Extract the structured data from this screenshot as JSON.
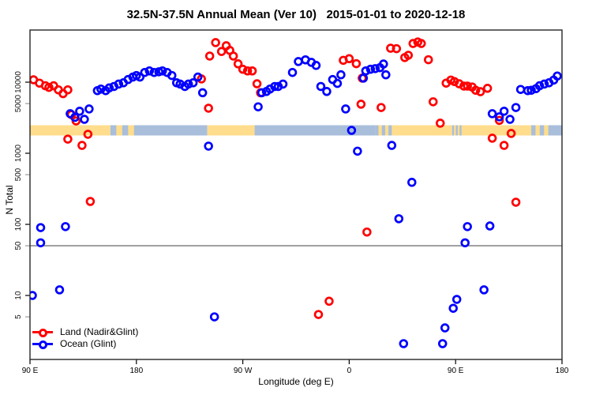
{
  "chart_data": {
    "type": "scatter",
    "title": "32.5N-37.5N Annual Mean (Ver 10)   2015-01-01 to 2020-12-18",
    "xlabel": "Longitude (deg E)",
    "ylabel": "N Total",
    "x_axis": {
      "start_label": "90 E",
      "span_deg": 450,
      "ticks": [
        {
          "deg": 0,
          "label": "90 E"
        },
        {
          "deg": 90,
          "label": "180"
        },
        {
          "deg": 180,
          "label": "90 W"
        },
        {
          "deg": 270,
          "label": "0"
        },
        {
          "deg": 360,
          "label": "90 E"
        },
        {
          "deg": 450,
          "label": "180"
        }
      ]
    },
    "y_axis": {
      "scale": "log",
      "range": [
        3,
        45000
      ],
      "ticks": [
        {
          "v": 5,
          "label": "5",
          "minor": true
        },
        {
          "v": 10,
          "label": "10",
          "minor": false
        },
        {
          "v": 50,
          "label": "50",
          "minor": true
        },
        {
          "v": 100,
          "label": "100",
          "minor": false
        },
        {
          "v": 500,
          "label": "500",
          "minor": true
        },
        {
          "v": 1000,
          "label": "1000",
          "minor": false
        },
        {
          "v": 5000,
          "label": "5000",
          "minor": true
        },
        {
          "v": 10000,
          "label": "10000",
          "minor": false
        }
      ]
    },
    "gridline_y_value": 50,
    "gridline_color": "#8a8a8a",
    "legend": [
      {
        "label": "Land (Nadir&Glint)",
        "color": "#FF0000"
      },
      {
        "label": "Ocean (Glint)",
        "color": "#0000FF"
      }
    ],
    "surface_strip": {
      "land_color": "#FFDD8C",
      "ocean_color": "#A8BEDB",
      "y_value": 2100,
      "thickness_px": 13,
      "segments": [
        {
          "d0": 0,
          "d1": 68,
          "type": "land"
        },
        {
          "d0": 68,
          "d1": 93,
          "type": "mix"
        },
        {
          "d0": 93,
          "d1": 150,
          "type": "ocean"
        },
        {
          "d0": 150,
          "d1": 190,
          "type": "land"
        },
        {
          "d0": 190,
          "d1": 292,
          "type": "ocean"
        },
        {
          "d0": 292,
          "d1": 306,
          "type": "mix"
        },
        {
          "d0": 306,
          "d1": 357,
          "type": "land"
        },
        {
          "d0": 357,
          "d1": 365,
          "type": "mix"
        },
        {
          "d0": 365,
          "d1": 424,
          "type": "land"
        },
        {
          "d0": 424,
          "d1": 442,
          "type": "mix"
        },
        {
          "d0": 442,
          "d1": 450,
          "type": "ocean"
        }
      ]
    },
    "series": [
      {
        "name": "Land (Nadir&Glint)",
        "color": "#FF0000",
        "points": [
          [
            3,
            10800
          ],
          [
            8,
            9700
          ],
          [
            13,
            8900
          ],
          [
            16,
            8450
          ],
          [
            20,
            8900
          ],
          [
            24,
            7800
          ],
          [
            28,
            6900
          ],
          [
            32,
            7800
          ],
          [
            35,
            3500
          ],
          [
            39,
            2850
          ],
          [
            32,
            1580
          ],
          [
            44,
            1290
          ],
          [
            49,
            1850
          ],
          [
            51,
            210
          ],
          [
            145,
            11100
          ],
          [
            152,
            23300
          ],
          [
            157,
            36000
          ],
          [
            162,
            27000
          ],
          [
            166,
            32500
          ],
          [
            169,
            28000
          ],
          [
            172,
            23300
          ],
          [
            176,
            18100
          ],
          [
            180,
            15200
          ],
          [
            184,
            14400
          ],
          [
            188,
            14400
          ],
          [
            192,
            9500
          ],
          [
            195,
            7100
          ],
          [
            151,
            4300
          ],
          [
            265,
            20300
          ],
          [
            270,
            21400
          ],
          [
            276,
            18200
          ],
          [
            281,
            11400
          ],
          [
            280,
            4900
          ],
          [
            297,
            4400
          ],
          [
            285,
            78
          ],
          [
            305,
            30000
          ],
          [
            310,
            29600
          ],
          [
            317,
            22200
          ],
          [
            320,
            23900
          ],
          [
            324,
            35000
          ],
          [
            328,
            36700
          ],
          [
            331,
            35000
          ],
          [
            337,
            20700
          ],
          [
            341,
            5300
          ],
          [
            347,
            2650
          ],
          [
            352,
            9700
          ],
          [
            356,
            10700
          ],
          [
            359,
            10200
          ],
          [
            363,
            9500
          ],
          [
            367,
            8800
          ],
          [
            370,
            8800
          ],
          [
            374,
            8550
          ],
          [
            377,
            7700
          ],
          [
            381,
            7350
          ],
          [
            387,
            8200
          ],
          [
            391,
            1630
          ],
          [
            397,
            2900
          ],
          [
            401,
            1290
          ],
          [
            407,
            1900
          ],
          [
            411,
            205
          ],
          [
            244,
            5.4
          ],
          [
            253,
            8.3
          ]
        ]
      },
      {
        "name": "Ocean (Glint)",
        "color": "#0000FF",
        "points": [
          [
            2,
            10
          ],
          [
            25,
            12
          ],
          [
            9,
            90
          ],
          [
            30,
            93
          ],
          [
            9,
            55
          ],
          [
            34,
            3600
          ],
          [
            38,
            3200
          ],
          [
            42,
            3900
          ],
          [
            46,
            3000
          ],
          [
            50,
            4200
          ],
          [
            57,
            7600
          ],
          [
            60,
            8000
          ],
          [
            64,
            7600
          ],
          [
            67,
            8300
          ],
          [
            71,
            8700
          ],
          [
            75,
            9400
          ],
          [
            79,
            9800
          ],
          [
            83,
            10900
          ],
          [
            87,
            11800
          ],
          [
            90,
            12400
          ],
          [
            93,
            11800
          ],
          [
            97,
            13700
          ],
          [
            101,
            14400
          ],
          [
            105,
            13700
          ],
          [
            109,
            14000
          ],
          [
            112,
            14400
          ],
          [
            116,
            13700
          ],
          [
            120,
            12400
          ],
          [
            124,
            9800
          ],
          [
            127,
            9400
          ],
          [
            131,
            8700
          ],
          [
            134,
            9400
          ],
          [
            138,
            9800
          ],
          [
            142,
            11800
          ],
          [
            146,
            7100
          ],
          [
            151,
            1260
          ],
          [
            193,
            4500
          ],
          [
            196,
            7100
          ],
          [
            200,
            7400
          ],
          [
            203,
            8000
          ],
          [
            207,
            8700
          ],
          [
            210,
            8700
          ],
          [
            214,
            9400
          ],
          [
            222,
            13700
          ],
          [
            227,
            19500
          ],
          [
            233,
            20600
          ],
          [
            238,
            19000
          ],
          [
            242,
            17200
          ],
          [
            246,
            8700
          ],
          [
            251,
            7400
          ],
          [
            256,
            10900
          ],
          [
            260,
            9600
          ],
          [
            263,
            12700
          ],
          [
            267,
            4200
          ],
          [
            272,
            2100
          ],
          [
            277,
            1070
          ],
          [
            282,
            11400
          ],
          [
            284,
            14400
          ],
          [
            288,
            15200
          ],
          [
            292,
            15500
          ],
          [
            296,
            16000
          ],
          [
            299,
            18000
          ],
          [
            301,
            12700
          ],
          [
            306,
            1290
          ],
          [
            312,
            120
          ],
          [
            323,
            390
          ],
          [
            391,
            3600
          ],
          [
            397,
            3250
          ],
          [
            401,
            3900
          ],
          [
            406,
            3000
          ],
          [
            411,
            4400
          ],
          [
            415,
            7900
          ],
          [
            421,
            7600
          ],
          [
            424,
            7700
          ],
          [
            428,
            8100
          ],
          [
            431,
            8900
          ],
          [
            435,
            9400
          ],
          [
            439,
            9800
          ],
          [
            443,
            10700
          ],
          [
            446,
            12200
          ],
          [
            156,
            5.0
          ],
          [
            316,
            2.1
          ],
          [
            349,
            2.1
          ],
          [
            351,
            3.5
          ],
          [
            358,
            6.6
          ],
          [
            361,
            8.8
          ],
          [
            384,
            12
          ],
          [
            368,
            55
          ],
          [
            370,
            93
          ],
          [
            389,
            95
          ]
        ]
      }
    ]
  }
}
